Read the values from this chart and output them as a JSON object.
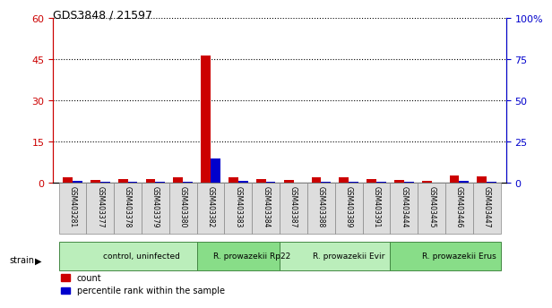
{
  "title": "GDS3848 / 21597",
  "samples": [
    "GSM403281",
    "GSM403377",
    "GSM403378",
    "GSM403379",
    "GSM403380",
    "GSM403382",
    "GSM403383",
    "GSM403384",
    "GSM403387",
    "GSM403388",
    "GSM403389",
    "GSM403391",
    "GSM403444",
    "GSM403445",
    "GSM403446",
    "GSM403447"
  ],
  "count_values": [
    2.2,
    1.1,
    1.5,
    1.5,
    2.2,
    46.5,
    2.2,
    1.5,
    1.0,
    2.0,
    2.0,
    1.5,
    1.0,
    0.8,
    2.8,
    2.3
  ],
  "percentile_values": [
    1.2,
    0.7,
    0.6,
    0.8,
    1.0,
    15.0,
    1.2,
    0.7,
    0.4,
    0.8,
    1.0,
    0.7,
    0.5,
    0.3,
    1.5,
    0.9
  ],
  "count_color": "#cc0000",
  "percentile_color": "#0000cc",
  "left_ylim": [
    0,
    60
  ],
  "right_ylim": [
    0,
    100
  ],
  "left_yticks": [
    0,
    15,
    30,
    45,
    60
  ],
  "right_yticks": [
    0,
    25,
    50,
    75,
    100
  ],
  "left_ytick_labels": [
    "0",
    "15",
    "30",
    "45",
    "60"
  ],
  "right_ytick_labels": [
    "0",
    "25",
    "50",
    "75",
    "100%"
  ],
  "groups": [
    {
      "label": "control, uninfected",
      "start": 0,
      "end": 5,
      "color": "#bbeebb"
    },
    {
      "label": "R. prowazekii Rp22",
      "start": 5,
      "end": 8,
      "color": "#88dd88"
    },
    {
      "label": "R. prowazekii Evir",
      "start": 8,
      "end": 12,
      "color": "#bbeebb"
    },
    {
      "label": "R. prowazekii Erus",
      "start": 12,
      "end": 16,
      "color": "#88dd88"
    }
  ],
  "strain_label": "strain",
  "legend_count": "count",
  "legend_percentile": "percentile rank within the sample",
  "bar_width": 0.35,
  "sample_col_bg": "#dddddd"
}
